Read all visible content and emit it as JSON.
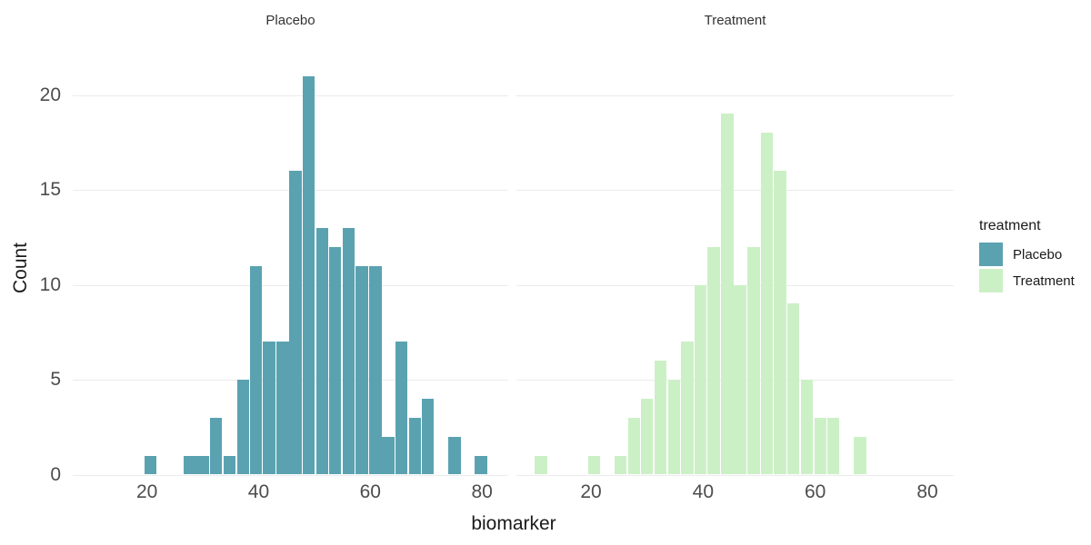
{
  "figure": {
    "y_axis_title": "Count",
    "x_axis_title": "biomarker",
    "legend": {
      "title": "treatment",
      "items": [
        {
          "label": "Placebo",
          "color": "#5ba2b1"
        },
        {
          "label": "Treatment",
          "color": "#ccf0c6"
        }
      ]
    },
    "colors": {
      "placebo_fill": "#5ba2b1",
      "treatment_fill": "#ccf0c6",
      "gridline": "#ebebeb",
      "axis_text": "#4d4d4d",
      "title_text": "#1a1a1a",
      "strip_text": "#333333",
      "background": "#ffffff"
    }
  },
  "chart_data": {
    "type": "bar",
    "subtype": "faceted-histogram",
    "xlabel": "biomarker",
    "ylabel": "Count",
    "xlim": [
      6.7,
      84.7
    ],
    "ylim": [
      0,
      22.85
    ],
    "x_ticks": [
      20,
      40,
      60,
      80
    ],
    "y_ticks": [
      0,
      5,
      10,
      15,
      20
    ],
    "grid": "horizontal-major-only",
    "legend_position": "right",
    "bin_width": 2.37,
    "facets": [
      {
        "title": "Placebo",
        "series": "Placebo",
        "color": "#5ba2b1",
        "bins": [
          {
            "x": 20.6,
            "count": 1
          },
          {
            "x": 27.7,
            "count": 1
          },
          {
            "x": 30.0,
            "count": 1
          },
          {
            "x": 32.4,
            "count": 3
          },
          {
            "x": 34.8,
            "count": 1
          },
          {
            "x": 37.2,
            "count": 5
          },
          {
            "x": 39.5,
            "count": 11
          },
          {
            "x": 41.9,
            "count": 7
          },
          {
            "x": 44.3,
            "count": 7
          },
          {
            "x": 46.6,
            "count": 16
          },
          {
            "x": 49.0,
            "count": 21
          },
          {
            "x": 51.4,
            "count": 13
          },
          {
            "x": 53.7,
            "count": 12
          },
          {
            "x": 56.1,
            "count": 13
          },
          {
            "x": 58.5,
            "count": 11
          },
          {
            "x": 60.9,
            "count": 11
          },
          {
            "x": 63.2,
            "count": 2
          },
          {
            "x": 65.6,
            "count": 7
          },
          {
            "x": 68.0,
            "count": 3
          },
          {
            "x": 70.3,
            "count": 4
          },
          {
            "x": 75.1,
            "count": 2
          },
          {
            "x": 79.8,
            "count": 1
          }
        ]
      },
      {
        "title": "Treatment",
        "series": "Treatment",
        "color": "#ccf0c6",
        "bins": [
          {
            "x": 11.1,
            "count": 1
          },
          {
            "x": 20.6,
            "count": 1
          },
          {
            "x": 25.3,
            "count": 1
          },
          {
            "x": 27.7,
            "count": 3
          },
          {
            "x": 30.0,
            "count": 4
          },
          {
            "x": 32.4,
            "count": 6
          },
          {
            "x": 34.8,
            "count": 5
          },
          {
            "x": 37.2,
            "count": 7
          },
          {
            "x": 39.5,
            "count": 10
          },
          {
            "x": 41.9,
            "count": 12
          },
          {
            "x": 44.3,
            "count": 19
          },
          {
            "x": 46.6,
            "count": 10
          },
          {
            "x": 49.0,
            "count": 12
          },
          {
            "x": 51.4,
            "count": 18
          },
          {
            "x": 53.7,
            "count": 16
          },
          {
            "x": 56.1,
            "count": 9
          },
          {
            "x": 58.5,
            "count": 5
          },
          {
            "x": 60.9,
            "count": 3
          },
          {
            "x": 63.2,
            "count": 3
          },
          {
            "x": 68.0,
            "count": 2
          }
        ]
      }
    ]
  }
}
